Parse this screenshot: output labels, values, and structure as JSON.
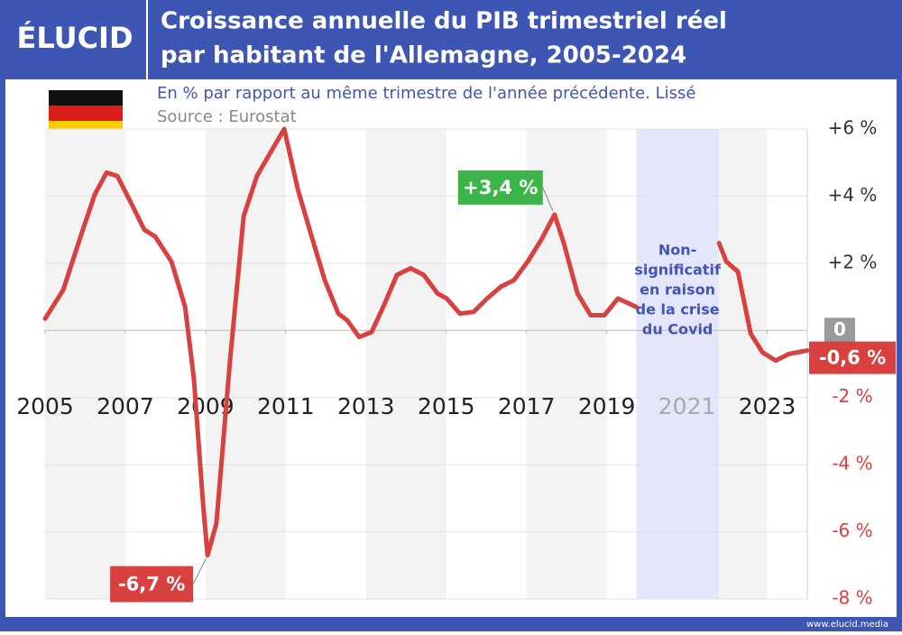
{
  "logo": "ÉLUCID",
  "footer": "www.elucid.media",
  "chart_data": {
    "type": "line",
    "title": [
      "Croissance annuelle du PIB trimestriel réel",
      "par habitant de l'Allemagne, 2005-2024"
    ],
    "subtitle": "En % par rapport au même trimestre de l'année précédente. Lissé",
    "source": "Source : Eurostat",
    "x": [
      2005.0,
      2005.45,
      2005.9,
      2006.24,
      2006.53,
      2006.8,
      2007.14,
      2007.47,
      2007.74,
      2008.15,
      2008.49,
      2008.71,
      2008.94,
      2009.05,
      2009.27,
      2009.61,
      2009.95,
      2010.28,
      2010.62,
      2010.96,
      2011.3,
      2011.63,
      2011.97,
      2012.31,
      2012.53,
      2012.83,
      2013.14,
      2013.43,
      2013.77,
      2014.11,
      2014.44,
      2014.78,
      2015.01,
      2015.34,
      2015.68,
      2016.02,
      2016.36,
      2016.69,
      2017.03,
      2017.37,
      2017.7,
      2017.93,
      2018.27,
      2018.6,
      2018.94,
      2019.28,
      2019.73,
      2020.5,
      2021.8,
      2021.98,
      2022.27,
      2022.59,
      2022.88,
      2023.21,
      2023.55,
      2024.0
    ],
    "series": [
      {
        "name": "Allemagne",
        "color": "#d94040",
        "values": [
          0.35,
          1.2,
          2.85,
          4.05,
          4.7,
          4.6,
          3.8,
          3.0,
          2.8,
          2.05,
          0.7,
          -1.45,
          -5.2,
          -6.7,
          -5.75,
          -0.9,
          3.4,
          4.6,
          5.3,
          6.0,
          4.2,
          2.85,
          1.5,
          0.5,
          0.3,
          -0.2,
          -0.05,
          0.7,
          1.65,
          1.85,
          1.65,
          1.1,
          0.95,
          0.5,
          0.55,
          0.95,
          1.3,
          1.5,
          2.05,
          2.7,
          3.45,
          2.6,
          1.1,
          0.45,
          0.45,
          0.95,
          0.7,
          null,
          2.6,
          2.05,
          1.75,
          -0.1,
          -0.65,
          -0.9,
          -0.7,
          -0.6
        ]
      }
    ],
    "xlim": [
      2005,
      2024
    ],
    "xticks": [
      2005,
      2007,
      2009,
      2011,
      2013,
      2015,
      2017,
      2019,
      2021,
      2023
    ],
    "ylim": [
      -8,
      6
    ],
    "yticks": [
      {
        "value": 6,
        "label": "+6 %"
      },
      {
        "value": 4,
        "label": "+4 %"
      },
      {
        "value": 2,
        "label": "+2 %"
      },
      0,
      {
        "value": -2,
        "label": "-2 %"
      },
      {
        "value": -4,
        "label": "-4 %"
      },
      {
        "value": -6,
        "label": "-6 %"
      },
      {
        "value": -8,
        "label": "-8 %"
      }
    ],
    "grid": true,
    "covid_band": [
      2019.74,
      2021.79
    ],
    "covid_note": [
      "Non-",
      "significatif",
      "en raison",
      "de la crise",
      "du Covid"
    ],
    "annotations": [
      {
        "text": "-6,7 %",
        "index": 13,
        "color": "#d94040"
      },
      {
        "text": "+3,4 %",
        "index": 40,
        "color": "#3bb54a"
      },
      {
        "text": "-0,6 %",
        "index": 55,
        "color": "#d94040"
      }
    ]
  }
}
